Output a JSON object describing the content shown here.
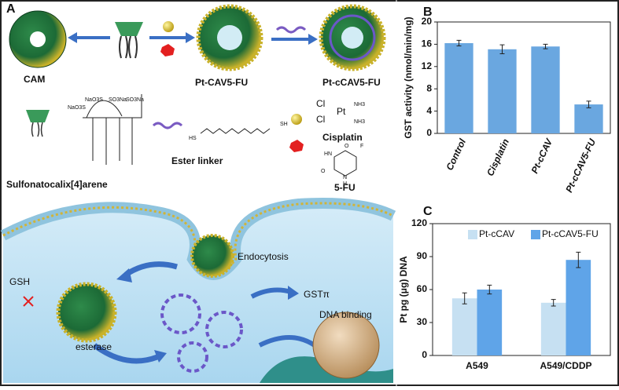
{
  "panels": [
    "A",
    "B",
    "C"
  ],
  "schematic": {
    "labels": [
      "CAM",
      "Pt-CAV5-FU",
      "Pt-cCAV5-FU",
      "Sulfonatocalix[4]arene",
      "Ester linker",
      "Cisplatin",
      "5-FU",
      "Endocytosis",
      "GSH",
      "esterase",
      "GSTπ",
      "DNA binding"
    ],
    "structure_text": [
      "NaO3S",
      "NaO3S",
      "SO3Na",
      "SO3Na",
      "Cl",
      "Cl",
      "Pt",
      "NH3",
      "NH3",
      "HS",
      "SH",
      "HN",
      "F",
      "N",
      "H",
      "O",
      "O"
    ]
  },
  "chart_data": [
    {
      "type": "bar",
      "ylabel": "GST activity (nmol/min/mg)",
      "categories": [
        "Control",
        "Cisplatin",
        "Pt-cCAV",
        "Pt-cCAV5-FU"
      ],
      "values": [
        16.2,
        15.1,
        15.6,
        5.2
      ],
      "errors": [
        0.5,
        0.8,
        0.4,
        0.6
      ],
      "color": "#6aa7e0",
      "ylim": [
        0,
        20
      ],
      "yticks": [
        0,
        4,
        8,
        12,
        16,
        20
      ]
    },
    {
      "type": "bar",
      "ylabel": "Pt pg (μg) DNA",
      "categories": [
        "A549",
        "A549/CDDP"
      ],
      "series": [
        {
          "name": "Pt-cCAV",
          "color": "#c6e0f2",
          "values": [
            52,
            48
          ],
          "errors": [
            5,
            3
          ]
        },
        {
          "name": "Pt-cCAV5-FU",
          "color": "#5fa4e8",
          "values": [
            60,
            87
          ],
          "errors": [
            4,
            7
          ]
        }
      ],
      "ylim": [
        0,
        120
      ],
      "yticks": [
        0,
        30,
        60,
        90,
        120
      ],
      "legend": "top"
    }
  ]
}
